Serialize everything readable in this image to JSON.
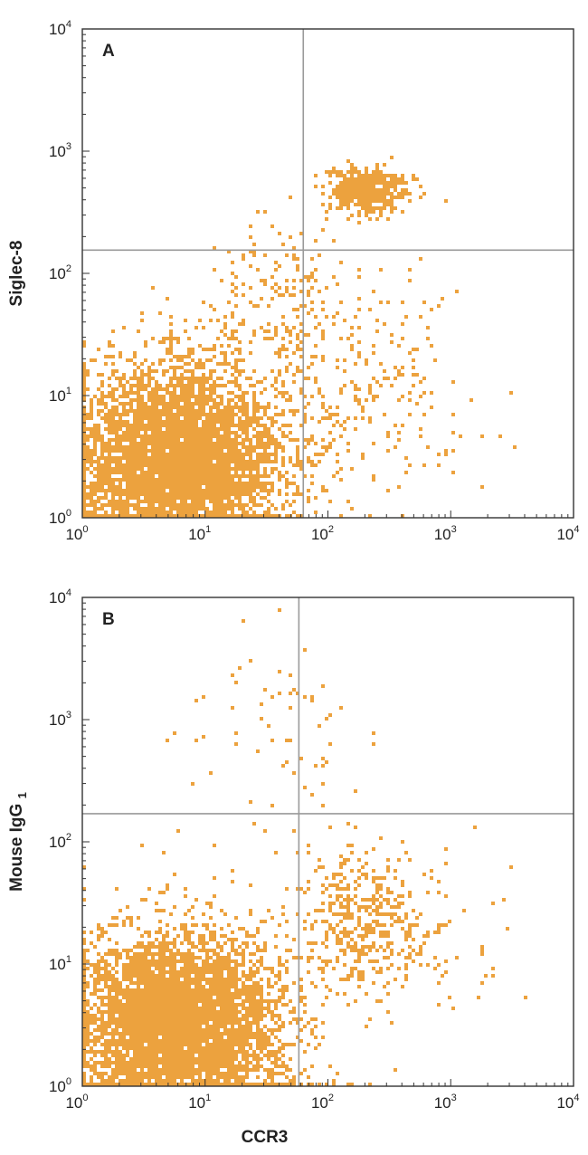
{
  "figure": {
    "x_title": "CCR3"
  },
  "colors": {
    "dots": "#eca23e",
    "gate": "#9a9a9a",
    "frame": "#333333",
    "background": "#ffffff"
  },
  "chart_data": [
    {
      "type": "scatter",
      "label": "A",
      "xlabel": "",
      "ylabel": "Siglec-8",
      "xscale": "log",
      "yscale": "log",
      "xlim": [
        1,
        10000
      ],
      "ylim": [
        1,
        10000
      ],
      "x_tick_labels": [
        {
          "base": "10",
          "exp": "0"
        },
        {
          "base": "10",
          "exp": "1"
        },
        {
          "base": "10",
          "exp": "2"
        },
        {
          "base": "10",
          "exp": "3"
        },
        {
          "base": "10",
          "exp": "4"
        }
      ],
      "y_tick_labels": [
        {
          "base": "10",
          "exp": "0"
        },
        {
          "base": "10",
          "exp": "1"
        },
        {
          "base": "10",
          "exp": "2"
        },
        {
          "base": "10",
          "exp": "3"
        },
        {
          "base": "10",
          "exp": "4"
        }
      ],
      "quadrant_gate": {
        "x": 63,
        "y": 155
      },
      "populations": [
        {
          "name": "main",
          "x_center": 6,
          "y_center": 3,
          "x_spread_log": 0.42,
          "y_spread_log": 0.38,
          "count": 5200
        },
        {
          "name": "upper-right cluster",
          "x_center": 200,
          "y_center": 480,
          "x_spread_log": 0.16,
          "y_spread_log": 0.09,
          "count": 450
        },
        {
          "name": "sparse right",
          "x_center": 160,
          "y_center": 10,
          "x_spread_log": 0.5,
          "y_spread_log": 0.45,
          "count": 260
        },
        {
          "name": "sparse bridge",
          "x_center": 40,
          "y_center": 60,
          "x_spread_log": 0.35,
          "y_spread_log": 0.35,
          "count": 170
        }
      ]
    },
    {
      "type": "scatter",
      "label": "B",
      "xlabel": "CCR3",
      "ylabel": "Mouse IgG",
      "ylabel_sub": "1",
      "xscale": "log",
      "yscale": "log",
      "xlim": [
        1,
        10000
      ],
      "ylim": [
        1,
        10000
      ],
      "x_tick_labels": [
        {
          "base": "10",
          "exp": "0"
        },
        {
          "base": "10",
          "exp": "1"
        },
        {
          "base": "10",
          "exp": "2"
        },
        {
          "base": "10",
          "exp": "3"
        },
        {
          "base": "10",
          "exp": "4"
        }
      ],
      "y_tick_labels": [
        {
          "base": "10",
          "exp": "0"
        },
        {
          "base": "10",
          "exp": "1"
        },
        {
          "base": "10",
          "exp": "2"
        },
        {
          "base": "10",
          "exp": "3"
        },
        {
          "base": "10",
          "exp": "4"
        }
      ],
      "quadrant_gate": {
        "x": 58,
        "y": 170
      },
      "populations": [
        {
          "name": "main",
          "x_center": 6,
          "y_center": 3,
          "x_spread_log": 0.42,
          "y_spread_log": 0.38,
          "count": 5200
        },
        {
          "name": "lower-right cluster",
          "x_center": 200,
          "y_center": 22,
          "x_spread_log": 0.28,
          "y_spread_log": 0.28,
          "count": 420
        },
        {
          "name": "sparse upper",
          "x_center": 40,
          "y_center": 600,
          "x_spread_log": 0.45,
          "y_spread_log": 0.45,
          "count": 70
        },
        {
          "name": "sparse right",
          "x_center": 600,
          "y_center": 15,
          "x_spread_log": 0.45,
          "y_spread_log": 0.45,
          "count": 60
        }
      ]
    }
  ]
}
